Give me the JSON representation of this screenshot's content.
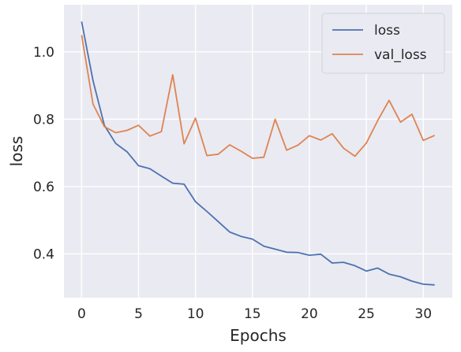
{
  "chart_data": {
    "type": "line",
    "title": "",
    "xlabel": "Epochs",
    "ylabel": "loss",
    "xlim": [
      -1.55,
      32.55
    ],
    "ylim": [
      0.27,
      1.14
    ],
    "xticks": [
      0,
      5,
      10,
      15,
      20,
      25,
      30
    ],
    "yticks": [
      0.4,
      0.6,
      0.8,
      1.0
    ],
    "ytick_labels": [
      "0.4",
      "0.6",
      "0.8",
      "1.0"
    ],
    "grid": true,
    "legend_position": "top-right",
    "x": [
      0,
      1,
      2,
      3,
      4,
      5,
      6,
      7,
      8,
      9,
      10,
      11,
      12,
      13,
      14,
      15,
      16,
      17,
      18,
      19,
      20,
      21,
      22,
      23,
      24,
      25,
      26,
      27,
      28,
      29,
      30,
      31
    ],
    "series": [
      {
        "name": "loss",
        "color": "#4c72b0",
        "values": [
          1.09,
          0.915,
          0.782,
          0.728,
          0.703,
          0.662,
          0.653,
          0.631,
          0.61,
          0.607,
          0.555,
          0.526,
          0.496,
          0.465,
          0.452,
          0.444,
          0.423,
          0.414,
          0.405,
          0.404,
          0.396,
          0.399,
          0.373,
          0.375,
          0.365,
          0.349,
          0.358,
          0.34,
          0.332,
          0.319,
          0.31,
          0.308
        ]
      },
      {
        "name": "val_loss",
        "color": "#dd8452",
        "values": [
          1.05,
          0.845,
          0.778,
          0.76,
          0.767,
          0.782,
          0.75,
          0.763,
          0.932,
          0.727,
          0.803,
          0.692,
          0.696,
          0.724,
          0.705,
          0.684,
          0.687,
          0.8,
          0.708,
          0.723,
          0.751,
          0.738,
          0.757,
          0.714,
          0.69,
          0.729,
          0.796,
          0.856,
          0.791,
          0.815,
          0.737,
          0.752
        ]
      }
    ]
  }
}
